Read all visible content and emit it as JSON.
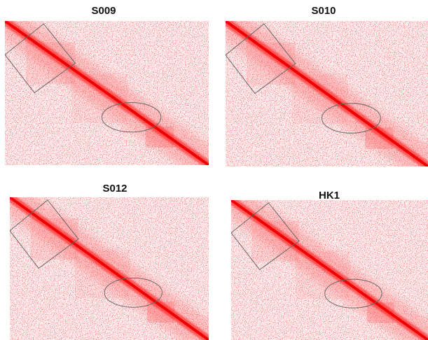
{
  "panels": [
    {
      "title": "S009"
    },
    {
      "title": "S010"
    },
    {
      "title": "S012"
    },
    {
      "title": "HK1"
    }
  ]
}
